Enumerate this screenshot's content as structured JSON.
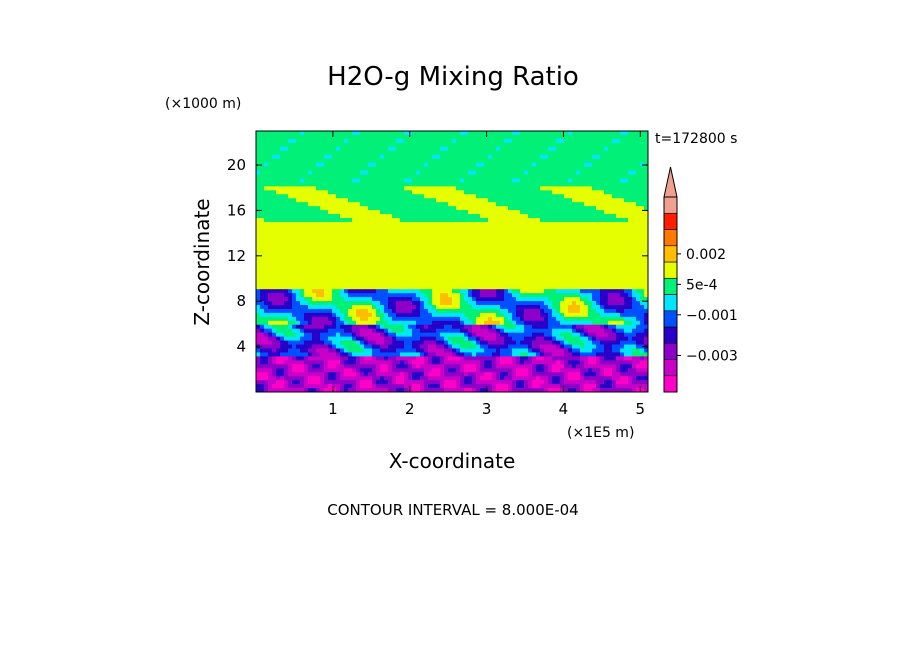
{
  "chart_data": {
    "type": "heatmap",
    "title": "H2O-g Mixing Ratio",
    "time_label": "t=172800 s",
    "xlabel": "X-coordinate",
    "ylabel": "Z-coordinate",
    "x_unit": "(×1E5 m)",
    "y_unit": "(×1000 m)",
    "footer": "CONTOUR INTERVAL = 8.000E-04",
    "xlim": [
      0,
      5.1
    ],
    "ylim": [
      0,
      23
    ],
    "x_ticks": [
      1,
      2,
      3,
      4,
      5
    ],
    "y_ticks": [
      4,
      8,
      12,
      16,
      20
    ],
    "x_tick_labels": [
      "1",
      "2",
      "3",
      "4",
      "5"
    ],
    "y_tick_labels": [
      "4",
      "8",
      "12",
      "16",
      "20"
    ],
    "contour_interval": 0.0008,
    "colorbar": {
      "levels": [
        -0.0048,
        -0.004,
        -0.0032,
        -0.0024,
        -0.0016,
        -0.0008,
        0,
        0.0008,
        0.0016,
        0.0024,
        0.0032,
        0.004
      ],
      "colors": [
        "#ff00c8",
        "#c800c8",
        "#8c00c8",
        "#2800c8",
        "#0050ff",
        "#00e6ff",
        "#00f078",
        "#e6ff00",
        "#ffbe00",
        "#ff7800",
        "#ff1e00",
        "#f0a090"
      ],
      "extend_color": "#f0a090",
      "labels": [
        {
          "text": "0.002",
          "value": 0.002
        },
        {
          "text": "5e-4",
          "value": 0.0005
        },
        {
          "text": "−0.001",
          "value": -0.001
        },
        {
          "text": "−0.003",
          "value": -0.003
        }
      ]
    },
    "field_description_colors": {
      "top_layer": "#00f078",
      "mid_layer": "#e6ff00",
      "lower_layer": "#00e6ff",
      "bottom_layer": "#8c00c8"
    }
  }
}
